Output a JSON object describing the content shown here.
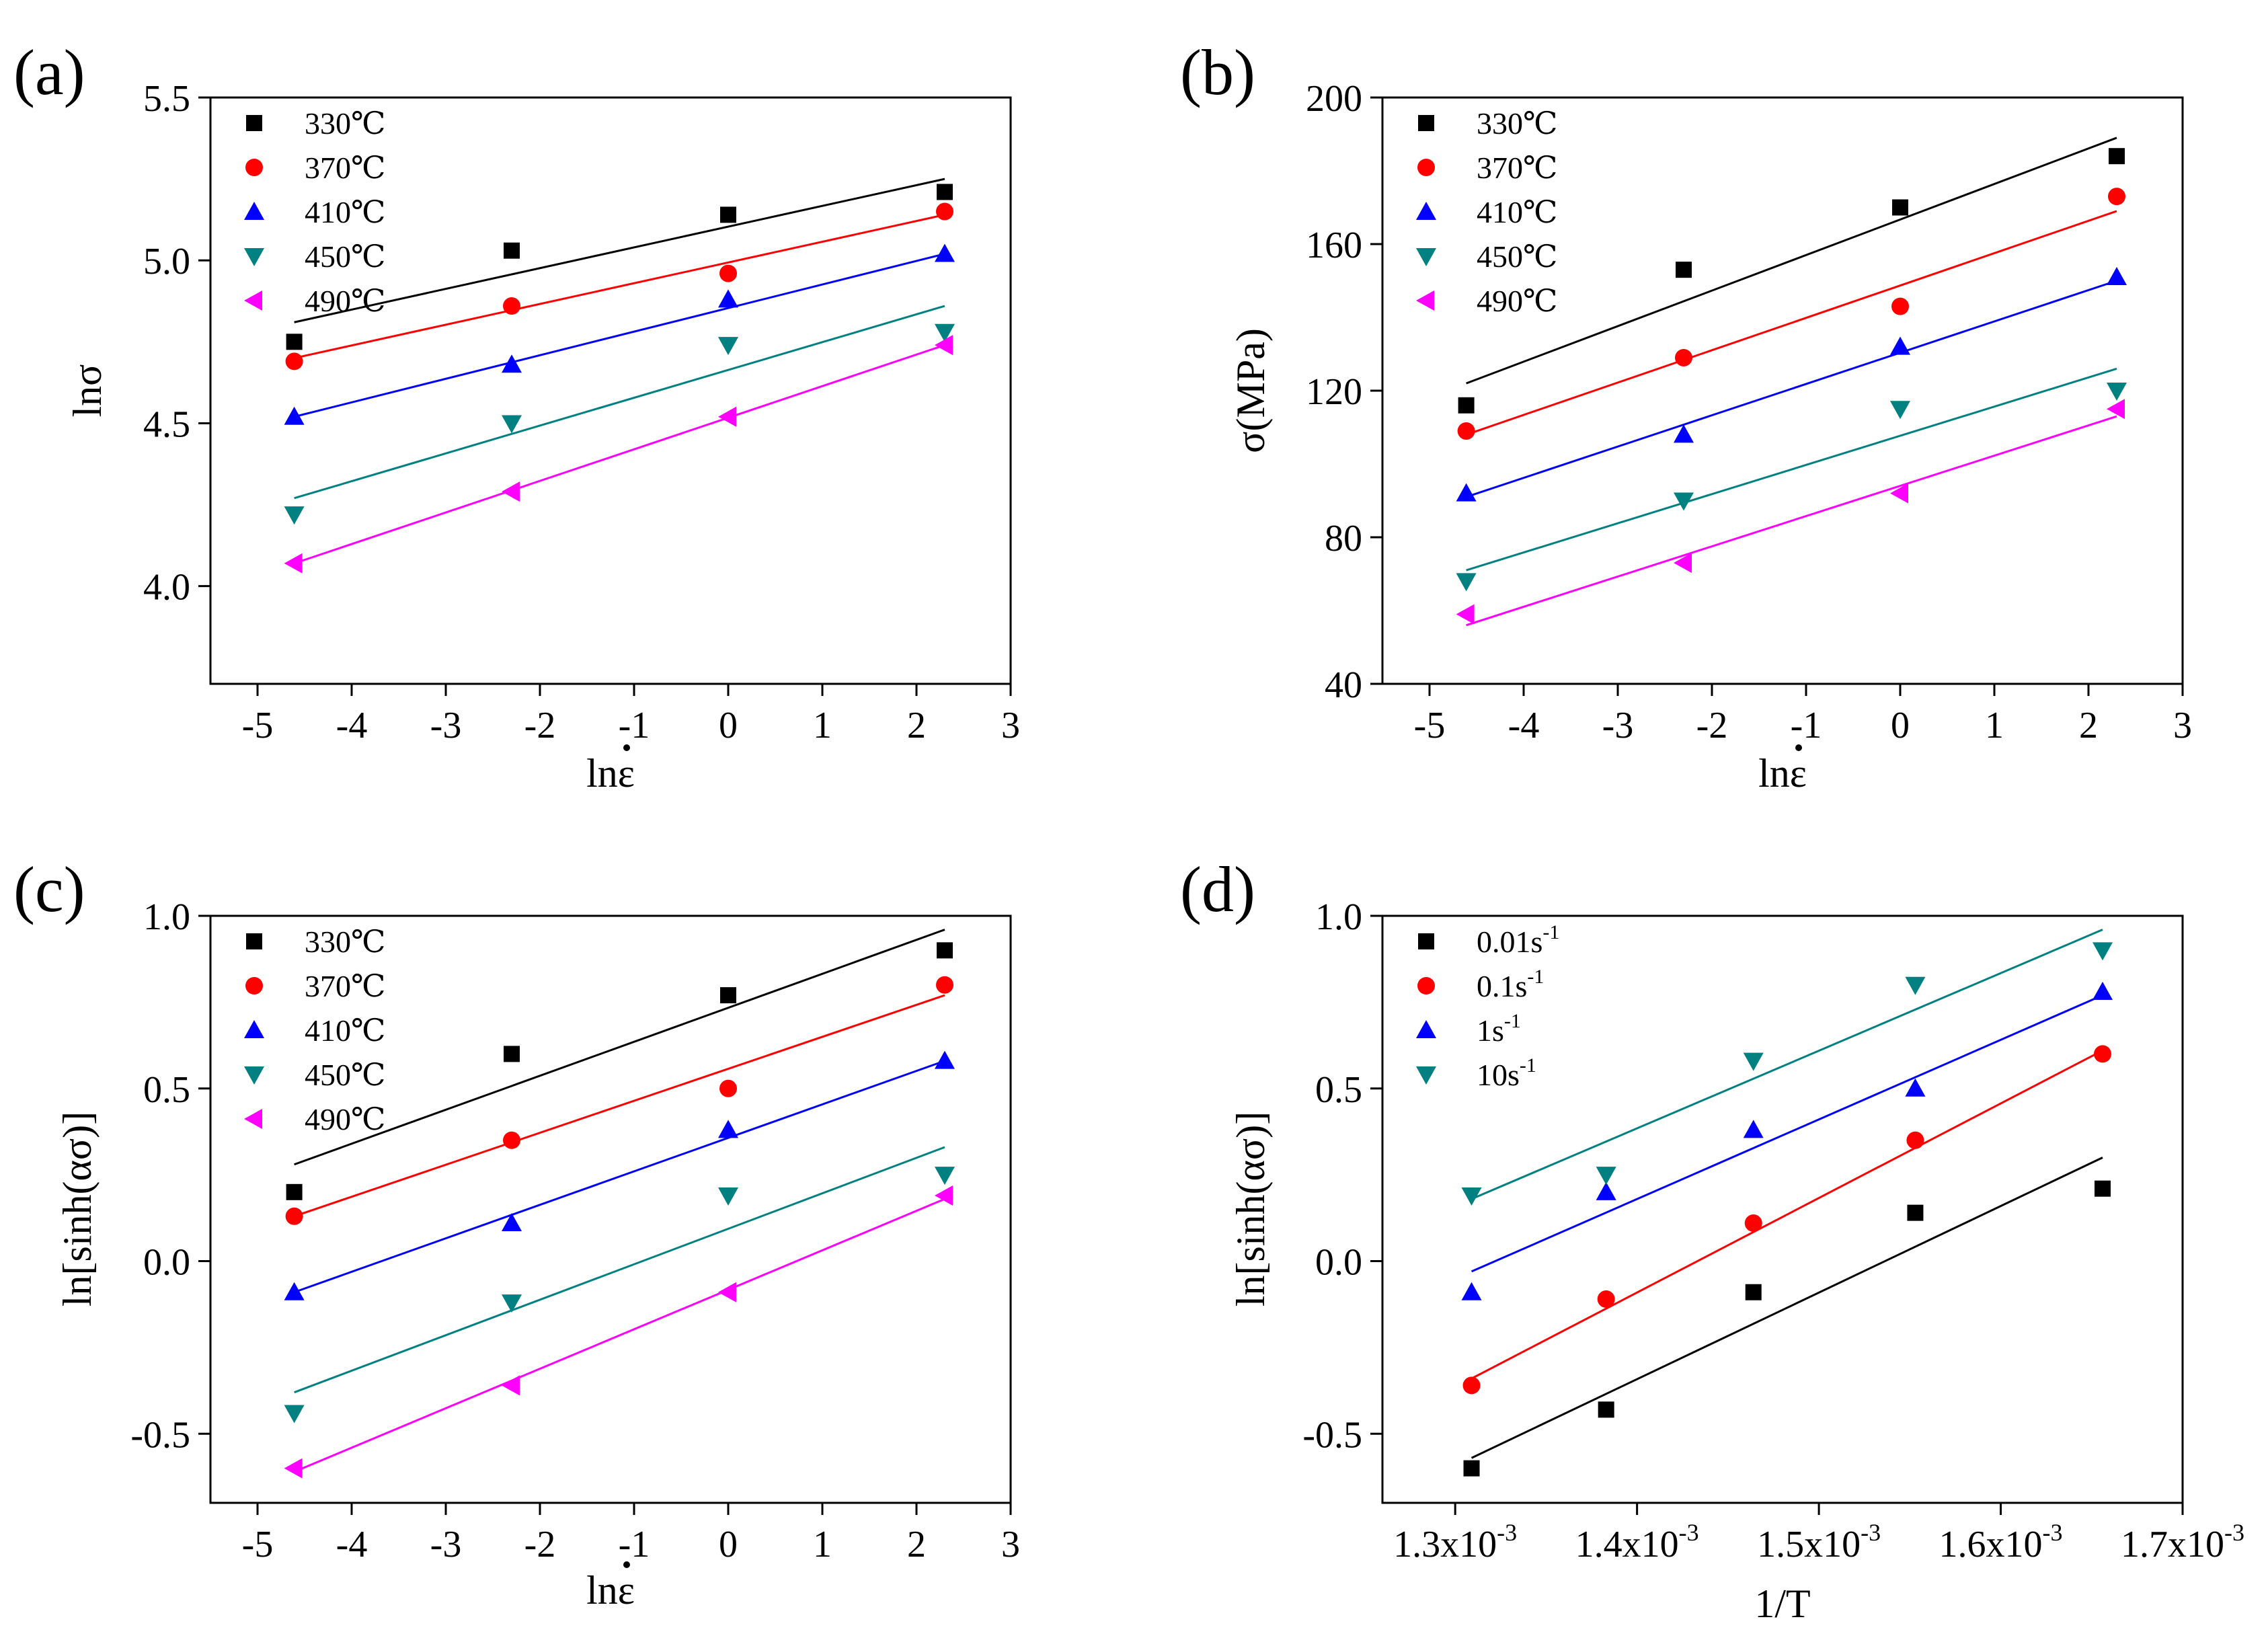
{
  "figure": {
    "panel_labels": [
      "(a)",
      "(b)",
      "(c)",
      "(d)"
    ]
  },
  "chart_data": [
    {
      "type": "scatter",
      "panel": "(a)",
      "xlabel": "lnε",
      "ylabel": "lnσ",
      "xlim": [
        -5.5,
        3
      ],
      "ylim": [
        3.7,
        5.5
      ],
      "xticks": [
        -5,
        -4,
        -3,
        -2,
        -1,
        0,
        1,
        2,
        3
      ],
      "yticks": [
        4.0,
        4.5,
        5.0,
        5.5
      ],
      "xtick_labels": [
        "-5",
        "-4",
        "-3",
        "-2",
        "-1",
        "0",
        "1",
        "2",
        "3"
      ],
      "ytick_labels": [
        "4.0",
        "4.5",
        "5.0",
        "5.5"
      ],
      "legend_position": "top-left",
      "series": [
        {
          "name": "330℃",
          "marker": "square",
          "color": "#000000",
          "x": [
            -4.61,
            -2.3,
            0,
            2.3
          ],
          "y": [
            4.75,
            5.03,
            5.14,
            5.21
          ],
          "fit": [
            [
              -4.61,
              4.81
            ],
            [
              2.3,
              5.25
            ]
          ]
        },
        {
          "name": "370℃",
          "marker": "circle",
          "color": "#ff0000",
          "x": [
            -4.61,
            -2.3,
            0,
            2.3
          ],
          "y": [
            4.69,
            4.86,
            4.96,
            5.15
          ],
          "fit": [
            [
              -4.61,
              4.7
            ],
            [
              2.3,
              5.14
            ]
          ]
        },
        {
          "name": "410℃",
          "marker": "triangle-up",
          "color": "#0000ff",
          "x": [
            -4.61,
            -2.3,
            0,
            2.3
          ],
          "y": [
            4.52,
            4.68,
            4.88,
            5.02
          ],
          "fit": [
            [
              -4.61,
              4.52
            ],
            [
              2.3,
              5.02
            ]
          ]
        },
        {
          "name": "450℃",
          "marker": "triangle-down",
          "color": "#008080",
          "x": [
            -4.61,
            -2.3,
            0,
            2.3
          ],
          "y": [
            4.22,
            4.5,
            4.74,
            4.78
          ],
          "fit": [
            [
              -4.61,
              4.27
            ],
            [
              2.3,
              4.86
            ]
          ]
        },
        {
          "name": "490℃",
          "marker": "triangle-left",
          "color": "#ff00ff",
          "x": [
            -4.61,
            -2.3,
            0,
            2.3
          ],
          "y": [
            4.07,
            4.29,
            4.52,
            4.74
          ],
          "fit": [
            [
              -4.61,
              4.07
            ],
            [
              2.3,
              4.74
            ]
          ]
        }
      ]
    },
    {
      "type": "scatter",
      "panel": "(b)",
      "xlabel": "lnε",
      "ylabel": "σ(MPa)",
      "xlim": [
        -5.5,
        3
      ],
      "ylim": [
        40,
        200
      ],
      "xticks": [
        -5,
        -4,
        -3,
        -2,
        -1,
        0,
        1,
        2,
        3
      ],
      "yticks": [
        40,
        80,
        120,
        160,
        200
      ],
      "xtick_labels": [
        "-5",
        "-4",
        "-3",
        "-2",
        "-1",
        "0",
        "1",
        "2",
        "3"
      ],
      "ytick_labels": [
        "40",
        "80",
        "120",
        "160",
        "200"
      ],
      "legend_position": "top-left",
      "series": [
        {
          "name": "330℃",
          "marker": "square",
          "color": "#000000",
          "x": [
            -4.61,
            -2.3,
            0,
            2.3
          ],
          "y": [
            116,
            153,
            170,
            184
          ],
          "fit": [
            [
              -4.61,
              122
            ],
            [
              2.3,
              189
            ]
          ]
        },
        {
          "name": "370℃",
          "marker": "circle",
          "color": "#ff0000",
          "x": [
            -4.61,
            -2.3,
            0,
            2.3
          ],
          "y": [
            109,
            129,
            143,
            173
          ],
          "fit": [
            [
              -4.61,
              108
            ],
            [
              2.3,
              169
            ]
          ]
        },
        {
          "name": "410℃",
          "marker": "triangle-up",
          "color": "#0000ff",
          "x": [
            -4.61,
            -2.3,
            0,
            2.3
          ],
          "y": [
            92,
            108,
            132,
            151
          ],
          "fit": [
            [
              -4.61,
              91
            ],
            [
              2.3,
              150
            ]
          ]
        },
        {
          "name": "450℃",
          "marker": "triangle-down",
          "color": "#008080",
          "x": [
            -4.61,
            -2.3,
            0,
            2.3
          ],
          "y": [
            68,
            90,
            115,
            120
          ],
          "fit": [
            [
              -4.61,
              71
            ],
            [
              2.3,
              126
            ]
          ]
        },
        {
          "name": "490℃",
          "marker": "triangle-left",
          "color": "#ff00ff",
          "x": [
            -4.61,
            -2.3,
            0,
            2.3
          ],
          "y": [
            59,
            73,
            92,
            115
          ],
          "fit": [
            [
              -4.61,
              56
            ],
            [
              2.3,
              113
            ]
          ]
        }
      ]
    },
    {
      "type": "scatter",
      "panel": "(c)",
      "xlabel": "lnε",
      "ylabel": "ln[sinh(ασ)]",
      "xlim": [
        -5.5,
        3
      ],
      "ylim": [
        -0.7,
        1.0
      ],
      "xticks": [
        -5,
        -4,
        -3,
        -2,
        -1,
        0,
        1,
        2,
        3
      ],
      "yticks": [
        -0.5,
        0.0,
        0.5,
        1.0
      ],
      "xtick_labels": [
        "-5",
        "-4",
        "-3",
        "-2",
        "-1",
        "0",
        "1",
        "2",
        "3"
      ],
      "ytick_labels": [
        "-0.5",
        "0.0",
        "0.5",
        "1.0"
      ],
      "legend_position": "top-left",
      "series": [
        {
          "name": "330℃",
          "marker": "square",
          "color": "#000000",
          "x": [
            -4.61,
            -2.3,
            0,
            2.3
          ],
          "y": [
            0.2,
            0.6,
            0.77,
            0.9
          ],
          "fit": [
            [
              -4.61,
              0.28
            ],
            [
              2.3,
              0.96
            ]
          ]
        },
        {
          "name": "370℃",
          "marker": "circle",
          "color": "#ff0000",
          "x": [
            -4.61,
            -2.3,
            0,
            2.3
          ],
          "y": [
            0.13,
            0.35,
            0.5,
            0.8
          ],
          "fit": [
            [
              -4.61,
              0.13
            ],
            [
              2.3,
              0.77
            ]
          ]
        },
        {
          "name": "410℃",
          "marker": "triangle-up",
          "color": "#0000ff",
          "x": [
            -4.61,
            -2.3,
            0,
            2.3
          ],
          "y": [
            -0.09,
            0.11,
            0.38,
            0.58
          ],
          "fit": [
            [
              -4.61,
              -0.09
            ],
            [
              2.3,
              0.58
            ]
          ]
        },
        {
          "name": "450℃",
          "marker": "triangle-down",
          "color": "#008080",
          "x": [
            -4.61,
            -2.3,
            0,
            2.3
          ],
          "y": [
            -0.44,
            -0.12,
            0.19,
            0.25
          ],
          "fit": [
            [
              -4.61,
              -0.38
            ],
            [
              2.3,
              0.33
            ]
          ]
        },
        {
          "name": "490℃",
          "marker": "triangle-left",
          "color": "#ff00ff",
          "x": [
            -4.61,
            -2.3,
            0,
            2.3
          ],
          "y": [
            -0.6,
            -0.36,
            -0.09,
            0.19
          ],
          "fit": [
            [
              -4.61,
              -0.61
            ],
            [
              2.3,
              0.18
            ]
          ]
        }
      ]
    },
    {
      "type": "scatter",
      "panel": "(d)",
      "xlabel": "1/T",
      "ylabel": "ln[sinh(ασ)]",
      "xlim": [
        0.00126,
        0.0017
      ],
      "ylim": [
        -0.7,
        1.0
      ],
      "xticks": [
        0.0013,
        0.0014,
        0.0015,
        0.0016,
        0.0017
      ],
      "yticks": [
        -0.5,
        0.0,
        0.5,
        1.0
      ],
      "xtick_labels": [
        "1.3x10",
        "1.4x10",
        "1.5x10",
        "1.6x10",
        "1.7x10"
      ],
      "xtick_exponent": "-3",
      "ytick_labels": [
        "-0.5",
        "0.0",
        "0.5",
        "1.0"
      ],
      "legend_position": "top-left",
      "series": [
        {
          "name": "0.01s",
          "name_superscript": "-1",
          "marker": "square",
          "color": "#000000",
          "x": [
            0.001309,
            0.001383,
            0.001464,
            0.001553,
            0.001656
          ],
          "y": [
            -0.6,
            -0.43,
            -0.09,
            0.14,
            0.21
          ],
          "fit": [
            [
              0.001309,
              -0.57
            ],
            [
              0.001656,
              0.3
            ]
          ]
        },
        {
          "name": "0.1s",
          "name_superscript": "-1",
          "marker": "circle",
          "color": "#ff0000",
          "x": [
            0.001309,
            0.001383,
            0.001464,
            0.001553,
            0.001656
          ],
          "y": [
            -0.36,
            -0.11,
            0.11,
            0.35,
            0.6
          ],
          "fit": [
            [
              0.001309,
              -0.34
            ],
            [
              0.001656,
              0.61
            ]
          ]
        },
        {
          "name": "1s",
          "name_superscript": "-1",
          "marker": "triangle-up",
          "color": "#0000ff",
          "x": [
            0.001309,
            0.001383,
            0.001464,
            0.001553,
            0.001656
          ],
          "y": [
            -0.09,
            0.2,
            0.38,
            0.5,
            0.78
          ],
          "fit": [
            [
              0.001309,
              -0.03
            ],
            [
              0.001656,
              0.77
            ]
          ]
        },
        {
          "name": "10s",
          "name_superscript": "-1",
          "marker": "triangle-down",
          "color": "#008080",
          "x": [
            0.001309,
            0.001383,
            0.001464,
            0.001553,
            0.001656
          ],
          "y": [
            0.19,
            0.25,
            0.58,
            0.8,
            0.9
          ],
          "fit": [
            [
              0.001309,
              0.18
            ],
            [
              0.001656,
              0.96
            ]
          ]
        }
      ]
    }
  ]
}
